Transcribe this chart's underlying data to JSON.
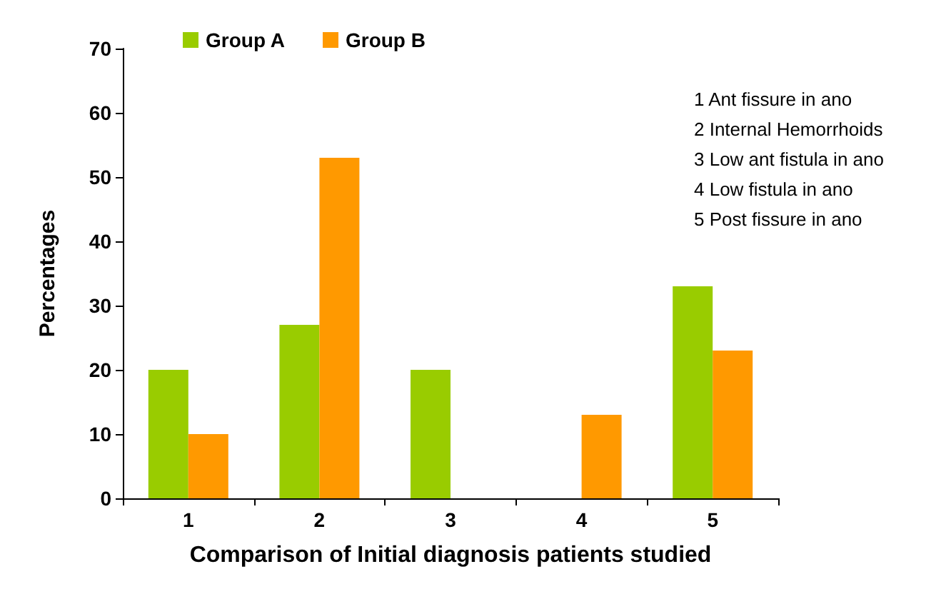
{
  "chart_data": {
    "type": "bar",
    "xlabel": "Comparison of Initial diagnosis patients studied",
    "ylabel": "Percentages",
    "categories": [
      "1",
      "2",
      "3",
      "4",
      "5"
    ],
    "series": [
      {
        "name": "Group A",
        "color": "#99cc00",
        "values": [
          20,
          27,
          20,
          0,
          33
        ]
      },
      {
        "name": "Group B",
        "color": "#ff9900",
        "values": [
          10,
          53,
          0,
          13,
          23
        ]
      }
    ],
    "ylim": [
      0,
      70
    ],
    "yticks": [
      0,
      10,
      20,
      30,
      40,
      50,
      60,
      70
    ],
    "grid": false,
    "legend": "top left",
    "annotations": [
      "1 Ant fissure in ano",
      "2 Internal Hemorrhoids",
      "3 Low ant fistula in ano",
      "4 Low fistula in ano",
      "5 Post fissure in ano"
    ]
  }
}
